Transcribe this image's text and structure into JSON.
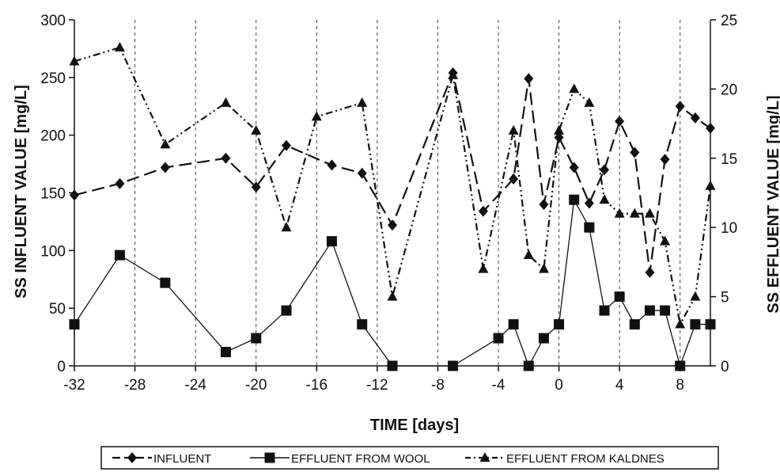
{
  "chart_data": {
    "type": "line",
    "title": "",
    "xlabel": "TIME  [days]",
    "ylabel_left": "SS INFLUENT VALUE  [mg/L]",
    "ylabel_right": "SS EFFLUENT VALUE  [mg/L]",
    "xlim": [
      -32,
      10
    ],
    "ylim_left": [
      0,
      300
    ],
    "ylim_right": [
      0,
      25
    ],
    "x_ticks": [
      -32,
      -28,
      -24,
      -20,
      -16,
      -12,
      -8,
      -4,
      0,
      4,
      8
    ],
    "y_left_ticks": [
      0,
      50,
      100,
      150,
      200,
      250,
      300
    ],
    "y_right_ticks": [
      0,
      5,
      10,
      15,
      20,
      25
    ],
    "grid": "vertical dashed",
    "legend_position": "bottom",
    "series": [
      {
        "name": "INFLUENT",
        "axis": "left",
        "marker": "diamond",
        "line_style": "long-dash",
        "points": [
          [
            -32,
            148
          ],
          [
            -29,
            158
          ],
          [
            -26,
            172
          ],
          [
            -22,
            180
          ],
          [
            -20,
            155
          ],
          [
            -18,
            191
          ],
          [
            -15,
            174
          ],
          [
            -13,
            167
          ],
          [
            -11,
            122
          ],
          [
            -7,
            254
          ],
          [
            -5,
            134
          ],
          [
            -3,
            162
          ],
          [
            -2,
            249
          ],
          [
            -1,
            140
          ],
          [
            0,
            198
          ],
          [
            1,
            172
          ],
          [
            2,
            141
          ],
          [
            3,
            170
          ],
          [
            4,
            212
          ],
          [
            5,
            185
          ],
          [
            6,
            81
          ],
          [
            7,
            179
          ],
          [
            8,
            225
          ],
          [
            9,
            215
          ],
          [
            10,
            206
          ]
        ]
      },
      {
        "name": "EFFLUENT FROM WOOL",
        "axis": "right",
        "marker": "square",
        "line_style": "solid",
        "points": [
          [
            -32,
            3
          ],
          [
            -29,
            8
          ],
          [
            -26,
            6
          ],
          [
            -22,
            1
          ],
          [
            -20,
            2
          ],
          [
            -18,
            4
          ],
          [
            -15,
            9
          ],
          [
            -13,
            3
          ],
          [
            -11,
            0
          ],
          [
            -7,
            0
          ],
          [
            -4,
            2
          ],
          [
            -3,
            3
          ],
          [
            -2,
            0
          ],
          [
            -1,
            2
          ],
          [
            0,
            3
          ],
          [
            1,
            12
          ],
          [
            2,
            10
          ],
          [
            3,
            4
          ],
          [
            4,
            5
          ],
          [
            5,
            3
          ],
          [
            6,
            4
          ],
          [
            7,
            4
          ],
          [
            8,
            0
          ],
          [
            9,
            3
          ],
          [
            10,
            3
          ]
        ]
      },
      {
        "name": "EFFLUENT FROM KALDNES",
        "axis": "right",
        "marker": "triangle",
        "line_style": "dash-dot-dot",
        "points": [
          [
            -32,
            22
          ],
          [
            -29,
            23
          ],
          [
            -26,
            16
          ],
          [
            -22,
            19
          ],
          [
            -20,
            17
          ],
          [
            -18,
            10
          ],
          [
            -16,
            18
          ],
          [
            -13,
            19
          ],
          [
            -11,
            5
          ],
          [
            -7,
            21
          ],
          [
            -5,
            7
          ],
          [
            -3,
            17
          ],
          [
            -2,
            8
          ],
          [
            -1,
            7
          ],
          [
            0,
            17
          ],
          [
            1,
            20
          ],
          [
            2,
            19
          ],
          [
            3,
            12
          ],
          [
            4,
            11
          ],
          [
            5,
            11
          ],
          [
            6,
            11
          ],
          [
            7,
            9
          ],
          [
            8,
            3
          ],
          [
            9,
            5
          ],
          [
            10,
            13
          ]
        ]
      }
    ]
  }
}
